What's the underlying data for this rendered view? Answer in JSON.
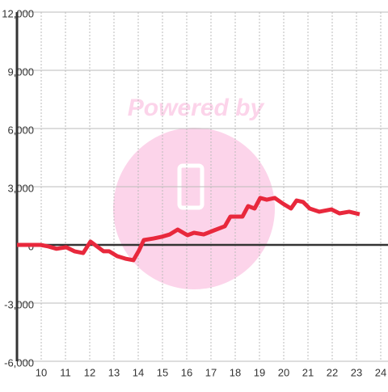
{
  "chart_data": {
    "type": "line",
    "watermark": "Powered by",
    "x": [
      9,
      9.97,
      10.3,
      10.63,
      11.03,
      11.37,
      11.73,
      12.03,
      12.3,
      12.57,
      12.8,
      13.13,
      13.47,
      13.8,
      14.03,
      14.23,
      14.63,
      14.97,
      15.3,
      15.63,
      16.03,
      16.3,
      16.7,
      17.13,
      17.57,
      17.8,
      18.3,
      18.53,
      18.8,
      19.03,
      19.3,
      19.63,
      19.97,
      20.3,
      20.53,
      20.8,
      21.07,
      21.47,
      21.97,
      22.3,
      22.7,
      23.13
    ],
    "series": [
      {
        "color": "#e8283c",
        "values": [
          0,
          0,
          -80,
          -200,
          -120,
          -330,
          -420,
          170,
          -80,
          -330,
          -330,
          -580,
          -710,
          -790,
          -290,
          250,
          330,
          420,
          540,
          790,
          500,
          625,
          540,
          750,
          960,
          1460,
          1460,
          2000,
          1875,
          2420,
          2330,
          2420,
          2125,
          1875,
          2290,
          2210,
          1875,
          1710,
          1830,
          1625,
          1710,
          1580
        ]
      }
    ],
    "xlim": [
      9,
      24.3
    ],
    "xticks": [
      10,
      11,
      12,
      13,
      14,
      15,
      16,
      17,
      18,
      19,
      20,
      21,
      22,
      23,
      24
    ],
    "ylim": [
      -6000,
      12000
    ],
    "yticks": [
      {
        "value": -6000,
        "label": "-6,000"
      },
      {
        "value": -3000,
        "label": "-3,000"
      },
      0,
      {
        "value": 3000,
        "label": "3,000"
      },
      {
        "value": 6000,
        "label": "6,000"
      },
      {
        "value": 9000,
        "label": "9,000"
      },
      {
        "value": 12000,
        "label": "12,000"
      }
    ],
    "grid": true
  }
}
